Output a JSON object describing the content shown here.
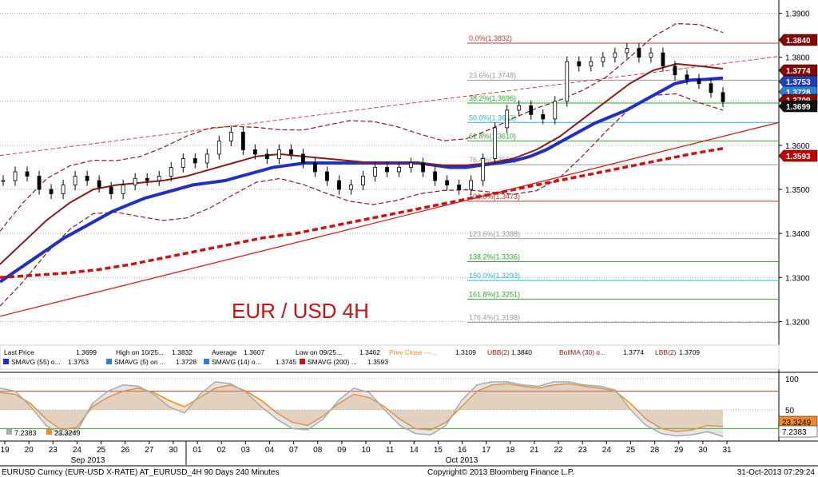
{
  "chart_data": [
    {
      "type": "candlestick",
      "title": "EUR / USD 4H",
      "x_date_labels": [
        "19",
        "20",
        "23",
        "24",
        "25",
        "26",
        "27",
        "30",
        "01",
        "02",
        "03",
        "04",
        "07",
        "08",
        "09",
        "10",
        "11",
        "14",
        "15",
        "16",
        "17",
        "18",
        "21",
        "22",
        "23",
        "24",
        "25",
        "28",
        "29",
        "30",
        "31"
      ],
      "x_month_labels": [
        "Sep 2013",
        "Oct 2013"
      ],
      "y_ticks": [
        "1.3200",
        "1.3300",
        "1.3400",
        "1.3500",
        "1.3600",
        "1.3700",
        "1.3800",
        "1.3900"
      ],
      "ylim": [
        1.315,
        1.393
      ],
      "grid": true,
      "fib_levels": [
        {
          "label": "0.0%(1.3832)",
          "value": 1.3832,
          "color": "#c0392b"
        },
        {
          "label": "23.6%(1.3748)",
          "value": 1.3748,
          "color": "#999999"
        },
        {
          "label": "38.2%(1.3696)",
          "value": 1.3696,
          "color": "#2ea82e"
        },
        {
          "label": "50.0%(1.3652)",
          "value": 1.3652,
          "color": "#2bb3d6"
        },
        {
          "label": "61.8%(1.3610)",
          "value": 1.361,
          "color": "#2ea82e"
        },
        {
          "label": "76.4%(1.3556)",
          "value": 1.3556,
          "color": "#999999"
        },
        {
          "label": "100.0%(1.3473)",
          "value": 1.3473,
          "color": "#c0392b"
        },
        {
          "label": "123.6%(1.3388)",
          "value": 1.3388,
          "color": "#999999"
        },
        {
          "label": "138.2%(1.3336)",
          "value": 1.3336,
          "color": "#2ea82e"
        },
        {
          "label": "150.0%(1.3293)",
          "value": 1.3293,
          "color": "#2bb3d6"
        },
        {
          "label": "161.8%(1.3251)",
          "value": 1.3251,
          "color": "#2ea82e"
        },
        {
          "label": "176.4%(1.3198)",
          "value": 1.3198,
          "color": "#999999"
        }
      ],
      "price_tags": [
        {
          "value": "1.3840",
          "bg": "#8b0000",
          "fg": "#ffffff"
        },
        {
          "value": "1.3774",
          "bg": "#8b0000",
          "fg": "#ffffff"
        },
        {
          "value": "1.3753",
          "bg": "#1f3fbf",
          "fg": "#ffffff"
        },
        {
          "value": "1.3728",
          "bg": "#2a7fd6",
          "fg": "#ffffff"
        },
        {
          "value": "1.3709",
          "bg": "#8b0000",
          "fg": "#ffffff"
        },
        {
          "value": "1.3699",
          "bg": "#111111",
          "fg": "#ffffff"
        },
        {
          "value": "1.3593",
          "bg": "#c00000",
          "fg": "#ffffff"
        }
      ],
      "legend": [
        [
          "Last Price",
          "1.3699",
          "High on 10/25...",
          "1.3832",
          "Average",
          "1.3607",
          "Low on 09/25...",
          "1.3462",
          "Prev Close ---...",
          "1.3109",
          "UBB(2)",
          "1.3840",
          "BollMA (30) o...",
          "1.3774",
          "LBB(2)",
          "1.3709"
        ],
        [
          "SMAVG (55) o...",
          "1.3753",
          "SMAVG (5) on ...",
          "1.3728",
          "SMAVG (14) o...",
          "1.3745",
          "SMAVG (200) ...",
          "1.3593"
        ]
      ],
      "series": [
        {
          "name": "Last Price",
          "color": "#000000",
          "style": "candles",
          "close": [
            1.352,
            1.354,
            1.353,
            1.35,
            1.349,
            1.351,
            1.353,
            1.352,
            1.3505,
            1.349,
            1.351,
            1.3525,
            1.352,
            1.353,
            1.355,
            1.357,
            1.356,
            1.358,
            1.361,
            1.363,
            1.359,
            1.358,
            1.357,
            1.359,
            1.358,
            1.356,
            1.354,
            1.352,
            1.35,
            1.351,
            1.353,
            1.355,
            1.354,
            1.355,
            1.356,
            1.354,
            1.352,
            1.351,
            1.35,
            1.352,
            1.357,
            1.364,
            1.368,
            1.369,
            1.367,
            1.366,
            1.37,
            1.379,
            1.378,
            1.379,
            1.38,
            1.381,
            1.382,
            1.38,
            1.381,
            1.378,
            1.376,
            1.375,
            1.374,
            1.372,
            1.3699
          ]
        },
        {
          "name": "SMAVG (55) o...",
          "color": "#1f2fc8",
          "values": [
            1.329,
            1.3315,
            1.334,
            1.3365,
            1.339,
            1.341,
            1.343,
            1.345,
            1.3465,
            1.348,
            1.349,
            1.35,
            1.351,
            1.3515,
            1.352,
            1.353,
            1.354,
            1.355,
            1.3555,
            1.356,
            1.356,
            1.356,
            1.356,
            1.356,
            1.356,
            1.356,
            1.356,
            1.3555,
            1.355,
            1.355,
            1.3555,
            1.356,
            1.3565,
            1.3575,
            1.359,
            1.361,
            1.363,
            1.365,
            1.3665,
            1.368,
            1.37,
            1.372,
            1.374,
            1.3748,
            1.375,
            1.3753
          ]
        },
        {
          "name": "SMAVG (200) ...",
          "color": "#d01010",
          "values": [
            1.33,
            1.3305,
            1.331,
            1.3318,
            1.333,
            1.3345,
            1.336,
            1.3375,
            1.339,
            1.34,
            1.3415,
            1.343,
            1.3445,
            1.346,
            1.3475,
            1.349,
            1.3505,
            1.352,
            1.3535,
            1.355,
            1.3565,
            1.358,
            1.3593
          ]
        },
        {
          "name": "BollMA (30) o...",
          "color": "#8b1a1a",
          "values": [
            1.333,
            1.338,
            1.343,
            1.347,
            1.35,
            1.351,
            1.3515,
            1.352,
            1.353,
            1.3545,
            1.356,
            1.3575,
            1.358,
            1.3575,
            1.357,
            1.3565,
            1.356,
            1.356,
            1.356,
            1.3555,
            1.3555,
            1.356,
            1.357,
            1.359,
            1.362,
            1.366,
            1.37,
            1.374,
            1.377,
            1.3785,
            1.378,
            1.3774
          ]
        }
      ]
    },
    {
      "type": "line",
      "title": "",
      "ylim": [
        0,
        100
      ],
      "y_ticks": [
        "50",
        "100"
      ],
      "levels": [
        {
          "value": 80,
          "color": "#c0392b"
        },
        {
          "value": 20,
          "color": "#2ea82e"
        }
      ],
      "legend": [
        {
          "label": "7.2383",
          "color": "#aaaaaa"
        },
        {
          "label": "23.3249",
          "color": "#f08a24"
        }
      ],
      "price_tags": [
        {
          "value": "23.3249",
          "bg": "#f08a24",
          "fg": "#000000"
        },
        {
          "value": "7.2383",
          "bg": "#ffffff",
          "fg": "#000000"
        }
      ],
      "series": [
        {
          "name": "23.3249",
          "color": "#f08a24",
          "values": [
            78,
            75,
            60,
            35,
            18,
            22,
            55,
            70,
            80,
            85,
            78,
            65,
            55,
            70,
            85,
            90,
            80,
            65,
            45,
            30,
            25,
            40,
            60,
            75,
            70,
            55,
            35,
            20,
            18,
            30,
            55,
            80,
            90,
            92,
            88,
            85,
            90,
            92,
            88,
            85,
            80,
            60,
            35,
            20,
            15,
            18,
            25,
            23.3249
          ]
        },
        {
          "name": "7.2383",
          "color": "#aaaaaa",
          "values": [
            85,
            80,
            55,
            25,
            10,
            15,
            60,
            80,
            90,
            88,
            75,
            55,
            45,
            75,
            95,
            92,
            78,
            55,
            35,
            20,
            18,
            35,
            65,
            85,
            78,
            50,
            25,
            12,
            10,
            25,
            65,
            90,
            95,
            95,
            90,
            88,
            95,
            95,
            90,
            88,
            82,
            50,
            25,
            12,
            8,
            10,
            15,
            7.2383
          ]
        }
      ]
    }
  ],
  "footer": {
    "left": "EURUSD Curncy (EUR-USD X-RATE) AT_EURUSD_4H 90 Days 240 Minutes",
    "center": "Copyright© 2013 Bloomberg Finance L.P.",
    "right": "31-Oct-2013 07:29:24"
  }
}
